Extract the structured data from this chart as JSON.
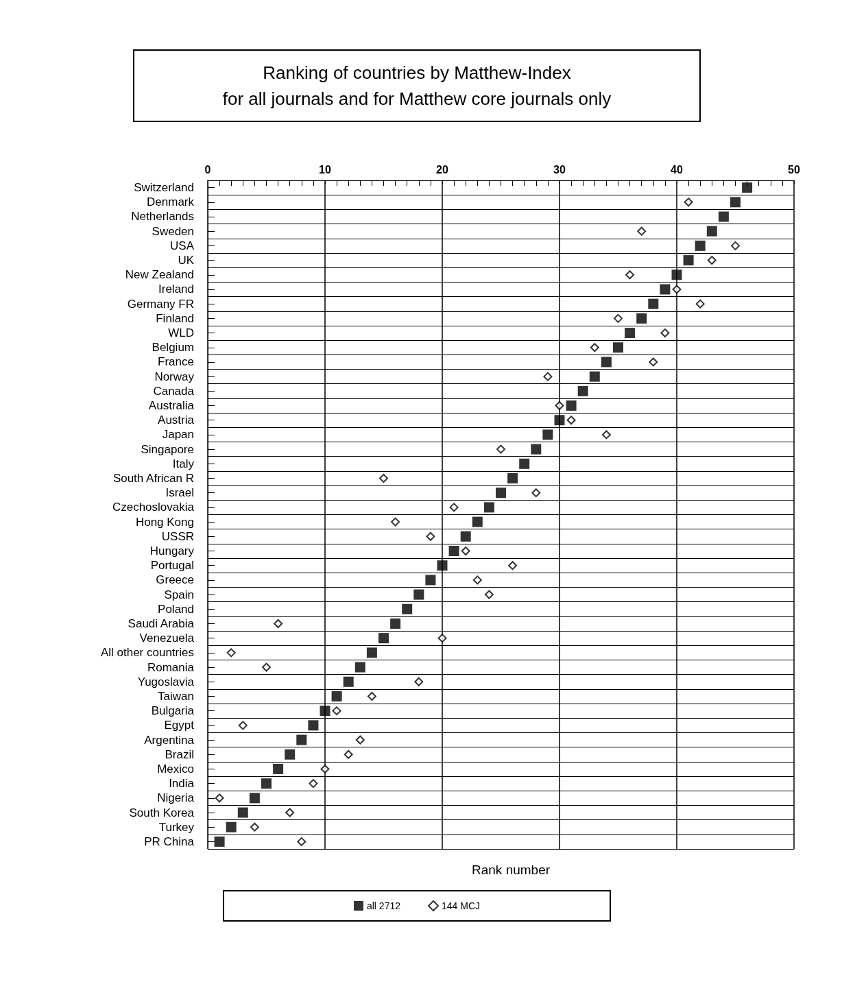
{
  "chart_data": {
    "type": "scatter",
    "title": "Ranking of countries by Matthew-Index\nfor all journals and for Matthew core journals only",
    "xlabel": "Rank number",
    "categories": [
      "Switzerland",
      "Denmark",
      "Netherlands",
      "Sweden",
      "USA",
      "UK",
      "New Zealand",
      "Ireland",
      "Germany FR",
      "Finland",
      "WLD",
      "Belgium",
      "France",
      "Norway",
      "Canada",
      "Australia",
      "Austria",
      "Japan",
      "Singapore",
      "Italy",
      "South African R",
      "Israel",
      "Czechoslovakia",
      "Hong Kong",
      "USSR",
      "Hungary",
      "Portugal",
      "Greece",
      "Spain",
      "Poland",
      "Saudi Arabia",
      "Venezuela",
      "All other countries",
      "Romania",
      "Yugoslavia",
      "Taiwan",
      "Bulgaria",
      "Egypt",
      "Argentina",
      "Brazil",
      "Mexico",
      "India",
      "Nigeria",
      "South Korea",
      "Turkey",
      "PR China"
    ],
    "orientation": "horizontal",
    "xlim": [
      0,
      50
    ],
    "xticks": [
      0,
      10,
      20,
      30,
      40,
      50
    ],
    "grid": true,
    "legend": "bottom",
    "series": [
      {
        "name": "all 2712",
        "color": "#000000",
        "marker": "square",
        "values": [
          46,
          45,
          44,
          43,
          42,
          41,
          40,
          39,
          38,
          37,
          36,
          35,
          34,
          33,
          32,
          31,
          30,
          29,
          28,
          27,
          26,
          25,
          24,
          23,
          22,
          21,
          20,
          19,
          18,
          17,
          16,
          15,
          14,
          13,
          12,
          11,
          10,
          9,
          8,
          7,
          6,
          5,
          4,
          3,
          2,
          1
        ]
      },
      {
        "name": "144 MCJ",
        "color": "#000000",
        "marker": "diamond",
        "values": [
          null,
          41,
          null,
          37,
          45,
          43,
          36,
          40,
          42,
          35,
          39,
          33,
          38,
          29,
          null,
          30,
          31,
          34,
          25,
          null,
          15,
          28,
          21,
          16,
          19,
          22,
          26,
          23,
          24,
          null,
          6,
          20,
          2,
          5,
          18,
          14,
          11,
          3,
          13,
          12,
          10,
          9,
          1,
          7,
          4,
          8
        ]
      }
    ]
  }
}
